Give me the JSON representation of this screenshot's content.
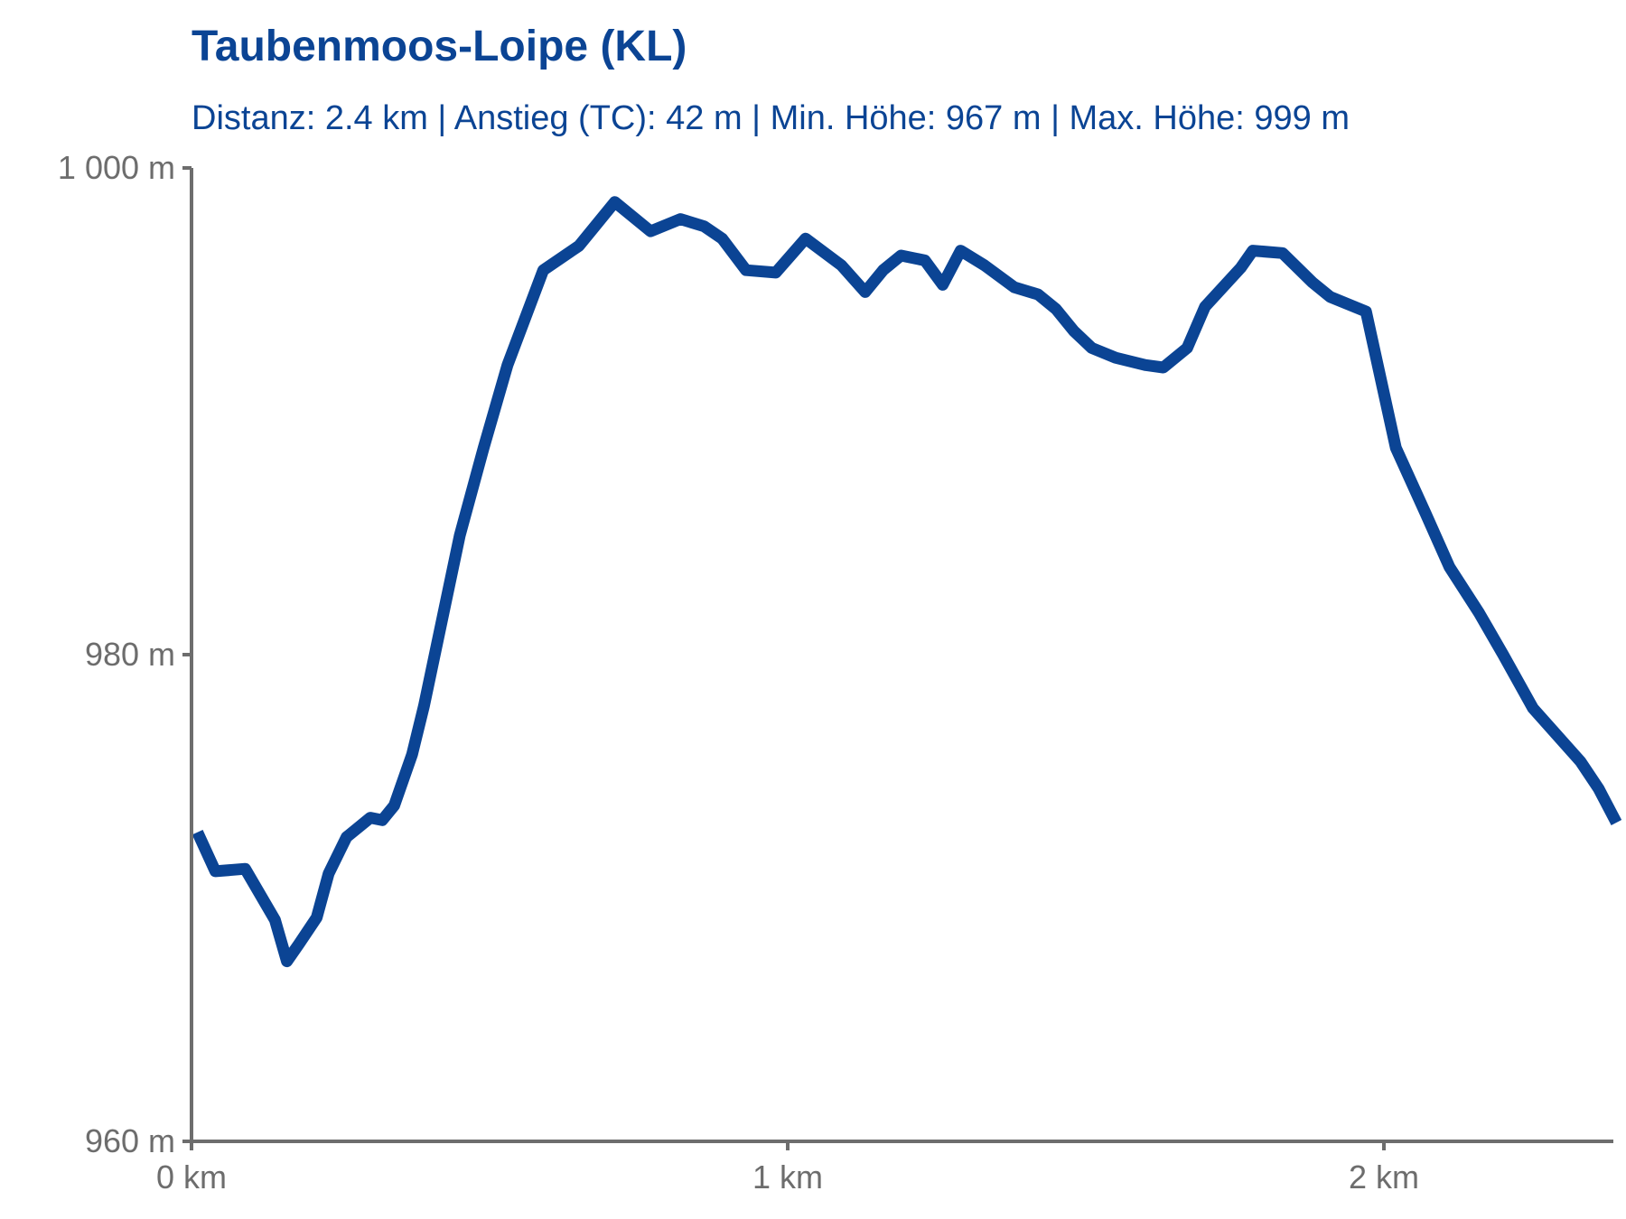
{
  "chart_data": {
    "type": "line",
    "title": "Taubenmoos-Loipe (KL)",
    "subtitle": "Distanz: 2.4 km | Anstieg (TC): 42 m | Min. Höhe: 967 m | Max. Höhe: 999 m",
    "xlabel": "",
    "ylabel": "",
    "xlim": [
      0,
      2.39
    ],
    "ylim": [
      960,
      1000
    ],
    "x_ticks": [
      {
        "value": 0,
        "label": "0 km"
      },
      {
        "value": 1,
        "label": "1 km"
      },
      {
        "value": 2,
        "label": "2 km"
      }
    ],
    "y_ticks": [
      {
        "value": 960,
        "label": "960 m"
      },
      {
        "value": 980,
        "label": "980 m"
      },
      {
        "value": 1000,
        "label": "1 000 m"
      }
    ],
    "grid": false,
    "legend": "none",
    "series": [
      {
        "color": "#0b4494",
        "points": [
          [
            0.01,
            972.7
          ],
          [
            0.04,
            971.1
          ],
          [
            0.09,
            971.2
          ],
          [
            0.14,
            969.1
          ],
          [
            0.16,
            967.4
          ],
          [
            0.18,
            968.1
          ],
          [
            0.21,
            969.2
          ],
          [
            0.23,
            971.0
          ],
          [
            0.26,
            972.5
          ],
          [
            0.3,
            973.3
          ],
          [
            0.32,
            973.2
          ],
          [
            0.34,
            973.8
          ],
          [
            0.37,
            975.9
          ],
          [
            0.39,
            977.9
          ],
          [
            0.45,
            984.9
          ],
          [
            0.49,
            988.5
          ],
          [
            0.53,
            991.9
          ],
          [
            0.59,
            995.8
          ],
          [
            0.65,
            996.8
          ],
          [
            0.71,
            998.6
          ],
          [
            0.77,
            997.4
          ],
          [
            0.82,
            997.9
          ],
          [
            0.86,
            997.6
          ],
          [
            0.89,
            997.1
          ],
          [
            0.93,
            995.8
          ],
          [
            0.98,
            995.7
          ],
          [
            1.03,
            997.1
          ],
          [
            1.09,
            996.0
          ],
          [
            1.13,
            994.9
          ],
          [
            1.16,
            995.8
          ],
          [
            1.19,
            996.4
          ],
          [
            1.23,
            996.2
          ],
          [
            1.26,
            995.2
          ],
          [
            1.29,
            996.6
          ],
          [
            1.33,
            996.0
          ],
          [
            1.38,
            995.1
          ],
          [
            1.42,
            994.8
          ],
          [
            1.45,
            994.2
          ],
          [
            1.48,
            993.3
          ],
          [
            1.51,
            992.6
          ],
          [
            1.55,
            992.2
          ],
          [
            1.6,
            991.9
          ],
          [
            1.63,
            991.8
          ],
          [
            1.67,
            992.6
          ],
          [
            1.7,
            994.3
          ],
          [
            1.76,
            995.9
          ],
          [
            1.78,
            996.6
          ],
          [
            1.83,
            996.5
          ],
          [
            1.88,
            995.3
          ],
          [
            1.91,
            994.7
          ],
          [
            1.97,
            994.1
          ],
          [
            2.02,
            988.5
          ],
          [
            2.07,
            985.8
          ],
          [
            2.11,
            983.6
          ],
          [
            2.16,
            981.7
          ],
          [
            2.2,
            980.0
          ],
          [
            2.25,
            977.8
          ],
          [
            2.29,
            976.7
          ],
          [
            2.33,
            975.6
          ],
          [
            2.36,
            974.5
          ],
          [
            2.39,
            973.1
          ]
        ]
      }
    ]
  }
}
